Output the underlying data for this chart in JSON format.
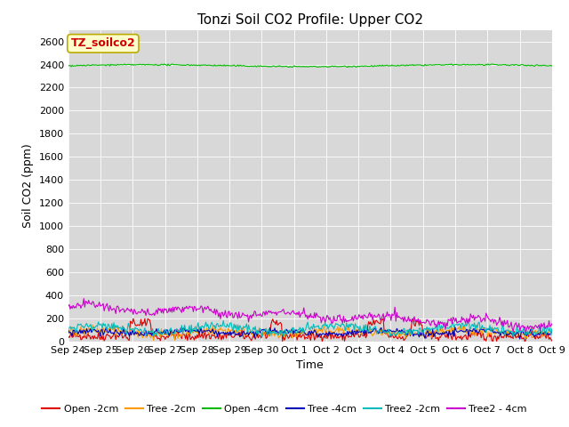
{
  "title": "Tonzi Soil CO2 Profile: Upper CO2",
  "xlabel": "Time",
  "ylabel": "Soil CO2 (ppm)",
  "ylim": [
    0,
    2700
  ],
  "yticks": [
    0,
    200,
    400,
    600,
    800,
    1000,
    1200,
    1400,
    1600,
    1800,
    2000,
    2200,
    2400,
    2600
  ],
  "n_points": 500,
  "series": [
    {
      "label": "Open -2cm",
      "color": "#dd0000",
      "base": 40,
      "amplitude": 50,
      "noise": 35,
      "type": "red"
    },
    {
      "label": "Tree -2cm",
      "color": "#ff9900",
      "base": 90,
      "amplitude": 25,
      "noise": 25,
      "type": "orange"
    },
    {
      "label": "Open -4cm",
      "color": "#00bb00",
      "base": 2390,
      "amplitude": 8,
      "noise": 3,
      "type": "green"
    },
    {
      "label": "Tree -4cm",
      "color": "#0000bb",
      "base": 85,
      "amplitude": 20,
      "noise": 18,
      "type": "blue"
    },
    {
      "label": "Tree2 -2cm",
      "color": "#00bbbb",
      "base": 110,
      "amplitude": 35,
      "noise": 22,
      "type": "cyan"
    },
    {
      "label": "Tree2 - 4cm",
      "color": "#cc00cc",
      "base": 170,
      "amplitude": 40,
      "noise": 25,
      "type": "magenta"
    }
  ],
  "xtick_labels": [
    "Sep 24",
    "Sep 25",
    "Sep 26",
    "Sep 27",
    "Sep 28",
    "Sep 29",
    "Sep 30",
    "Oct 1",
    "Oct 2",
    "Oct 3",
    "Oct 4",
    "Oct 5",
    "Oct 6",
    "Oct 7",
    "Oct 8",
    "Oct 9"
  ],
  "background_color": "#d8d8d8",
  "grid_color": "#ffffff",
  "annotation_text": "TZ_soilco2",
  "annotation_box_facecolor": "#ffffcc",
  "annotation_box_edgecolor": "#bbaa00",
  "title_fontsize": 11,
  "axis_label_fontsize": 9,
  "tick_fontsize": 8,
  "legend_fontsize": 8
}
